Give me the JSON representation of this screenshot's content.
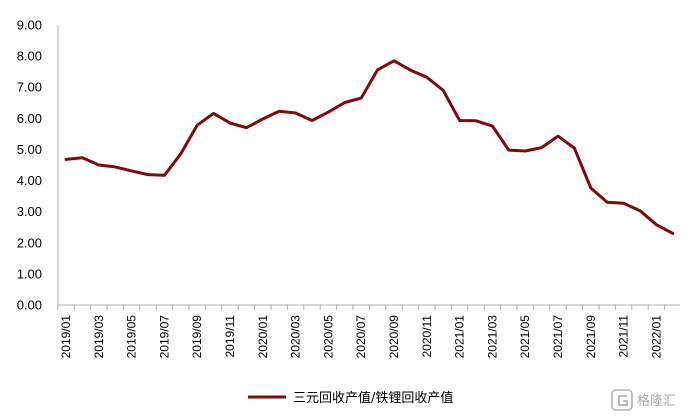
{
  "chart_data": {
    "type": "line",
    "x": [
      "2019/01",
      "2019/02",
      "2019/03",
      "2019/04",
      "2019/05",
      "2019/06",
      "2019/07",
      "2019/08",
      "2019/09",
      "2019/10",
      "2019/11",
      "2019/12",
      "2020/01",
      "2020/02",
      "2020/03",
      "2020/04",
      "2020/05",
      "2020/06",
      "2020/07",
      "2020/08",
      "2020/09",
      "2020/10",
      "2020/11",
      "2020/12",
      "2021/01",
      "2021/02",
      "2021/03",
      "2021/04",
      "2021/05",
      "2021/06",
      "2021/07",
      "2021/08",
      "2021/09",
      "2021/10",
      "2021/11",
      "2021/12",
      "2022/01",
      "2022/02"
    ],
    "x_tick_labels": [
      "2019/01",
      "2019/03",
      "2019/05",
      "2019/07",
      "2019/09",
      "2019/11",
      "2020/01",
      "2020/03",
      "2020/05",
      "2020/07",
      "2020/09",
      "2020/11",
      "2021/01",
      "2021/03",
      "2021/05",
      "2021/07",
      "2021/09",
      "2021/11",
      "2022/01"
    ],
    "series": [
      {
        "name": "三元回收产值/铁锂回收产值",
        "color": "#7b0c0c",
        "values": [
          4.68,
          4.73,
          4.5,
          4.44,
          4.31,
          4.19,
          4.17,
          4.86,
          5.78,
          6.16,
          5.85,
          5.7,
          5.98,
          6.23,
          6.17,
          5.93,
          6.2,
          6.51,
          6.65,
          7.56,
          7.85,
          7.55,
          7.32,
          6.9,
          5.93,
          5.92,
          5.75,
          4.98,
          4.95,
          5.06,
          5.43,
          5.04,
          3.76,
          3.3,
          3.27,
          3.03,
          2.58,
          2.3
        ]
      }
    ],
    "y_tick_labels": [
      "0.00",
      "1.00",
      "2.00",
      "3.00",
      "4.00",
      "5.00",
      "6.00",
      "7.00",
      "8.00",
      "9.00"
    ],
    "ylim": [
      0,
      9
    ],
    "grid": false,
    "legend_position": "bottom-center"
  },
  "watermark": {
    "text": "格隆汇",
    "icon": "gelonghui-logo-icon"
  }
}
